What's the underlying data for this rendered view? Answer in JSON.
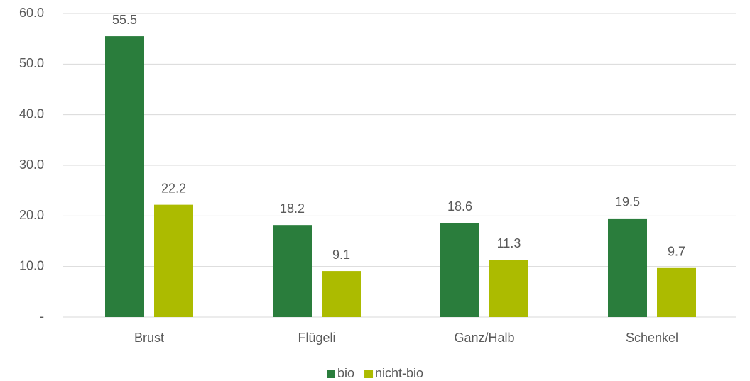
{
  "chart_data": {
    "type": "bar",
    "categories": [
      "Brust",
      "Flügeli",
      "Ganz/Halb",
      "Schenkel"
    ],
    "series": [
      {
        "name": "bio",
        "color": "#2a7d3c",
        "values": [
          55.5,
          18.2,
          18.6,
          19.5
        ]
      },
      {
        "name": "nicht-bio",
        "color": "#acbb00",
        "values": [
          22.2,
          9.1,
          11.3,
          9.7
        ]
      }
    ],
    "ylim": [
      0,
      60
    ],
    "yticks": [
      {
        "value": 0,
        "label": "-"
      },
      {
        "value": 10,
        "label": "10.0"
      },
      {
        "value": 20,
        "label": "20.0"
      },
      {
        "value": 30,
        "label": "30.0"
      },
      {
        "value": 40,
        "label": "40.0"
      },
      {
        "value": 50,
        "label": "50.0"
      },
      {
        "value": 60,
        "label": "60.0"
      }
    ],
    "grid": true,
    "legend": "bottom"
  }
}
